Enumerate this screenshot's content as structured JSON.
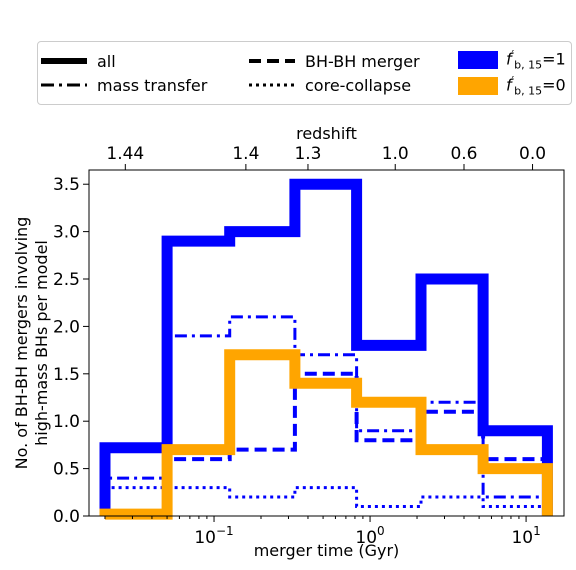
{
  "legend": {
    "items": [
      {
        "label": "all",
        "style": "solid",
        "kind": "line"
      },
      {
        "label": "mass transfer",
        "style": "dashdot",
        "kind": "line"
      },
      {
        "label": "BH-BH merger",
        "style": "dashed",
        "kind": "line"
      },
      {
        "label": "core-collapse",
        "style": "dotted",
        "kind": "line"
      },
      {
        "label_main": "f",
        "label_sup": "′",
        "label_sub": "b, 15",
        "label_tail": "=1",
        "color": "#0000ff",
        "kind": "patch"
      },
      {
        "label_main": "f",
        "label_sup": "′",
        "label_sub": "b, 15",
        "label_tail": "=0",
        "color": "#ffa500",
        "kind": "patch"
      }
    ]
  },
  "chart_data": {
    "type": "step histogram",
    "xscale": "log",
    "xlabel": "merger time (Gyr)",
    "ylabel": "No. of BH-BH mergers involving high-mass BHs per model",
    "ylabel_lines": [
      "No. of BH-BH mergers involving",
      "high-mass BHs per model"
    ],
    "x2label": "redshift",
    "xlim": [
      0.0158,
      17.5
    ],
    "ylim": [
      0,
      3.65
    ],
    "yticks": [
      0.0,
      0.5,
      1.0,
      1.5,
      2.0,
      2.5,
      3.0,
      3.5
    ],
    "ytick_labels": [
      "0.0",
      "0.5",
      "1.0",
      "1.5",
      "2.0",
      "2.5",
      "3.0",
      "3.5"
    ],
    "xticks": [
      0.1,
      1,
      10
    ],
    "xtick_labels": [
      [
        "10",
        "−1"
      ],
      [
        "10",
        "0"
      ],
      [
        "10",
        "1"
      ]
    ],
    "top_ticks": [
      {
        "x": 0.027,
        "label": "1.44"
      },
      {
        "x": 0.16,
        "label": "1.4"
      },
      {
        "x": 0.4,
        "label": "1.3"
      },
      {
        "x": 1.45,
        "label": "1.0"
      },
      {
        "x": 4.0,
        "label": "0.6"
      },
      {
        "x": 11.0,
        "label": "0.0"
      }
    ],
    "bin_edges": [
      0.02,
      0.05,
      0.126,
      0.33,
      0.82,
      2.12,
      5.3,
      13.7
    ],
    "series": [
      {
        "model": "f=1",
        "channel": "all",
        "color": "#0000ff",
        "style": "solid",
        "values": [
          0.72,
          2.9,
          3.0,
          3.5,
          1.8,
          2.5,
          0.9
        ]
      },
      {
        "model": "f=1",
        "channel": "mass transfer",
        "color": "#0000ff",
        "style": "dashdot",
        "values": [
          0.4,
          1.9,
          2.1,
          1.7,
          0.9,
          1.2,
          0.2
        ]
      },
      {
        "model": "f=1",
        "channel": "BH-BH merger",
        "color": "#0000ff",
        "style": "dashed",
        "values": [
          0.02,
          0.6,
          0.7,
          1.5,
          0.8,
          1.1,
          0.6
        ]
      },
      {
        "model": "f=1",
        "channel": "core-collapse",
        "color": "#0000ff",
        "style": "dotted",
        "values": [
          0.3,
          0.3,
          0.2,
          0.3,
          0.1,
          0.2,
          0.1
        ]
      },
      {
        "model": "f=0",
        "channel": "all",
        "color": "#ffa500",
        "style": "solid",
        "values": [
          0.02,
          0.7,
          1.7,
          1.4,
          1.2,
          0.7,
          0.5
        ]
      }
    ]
  }
}
